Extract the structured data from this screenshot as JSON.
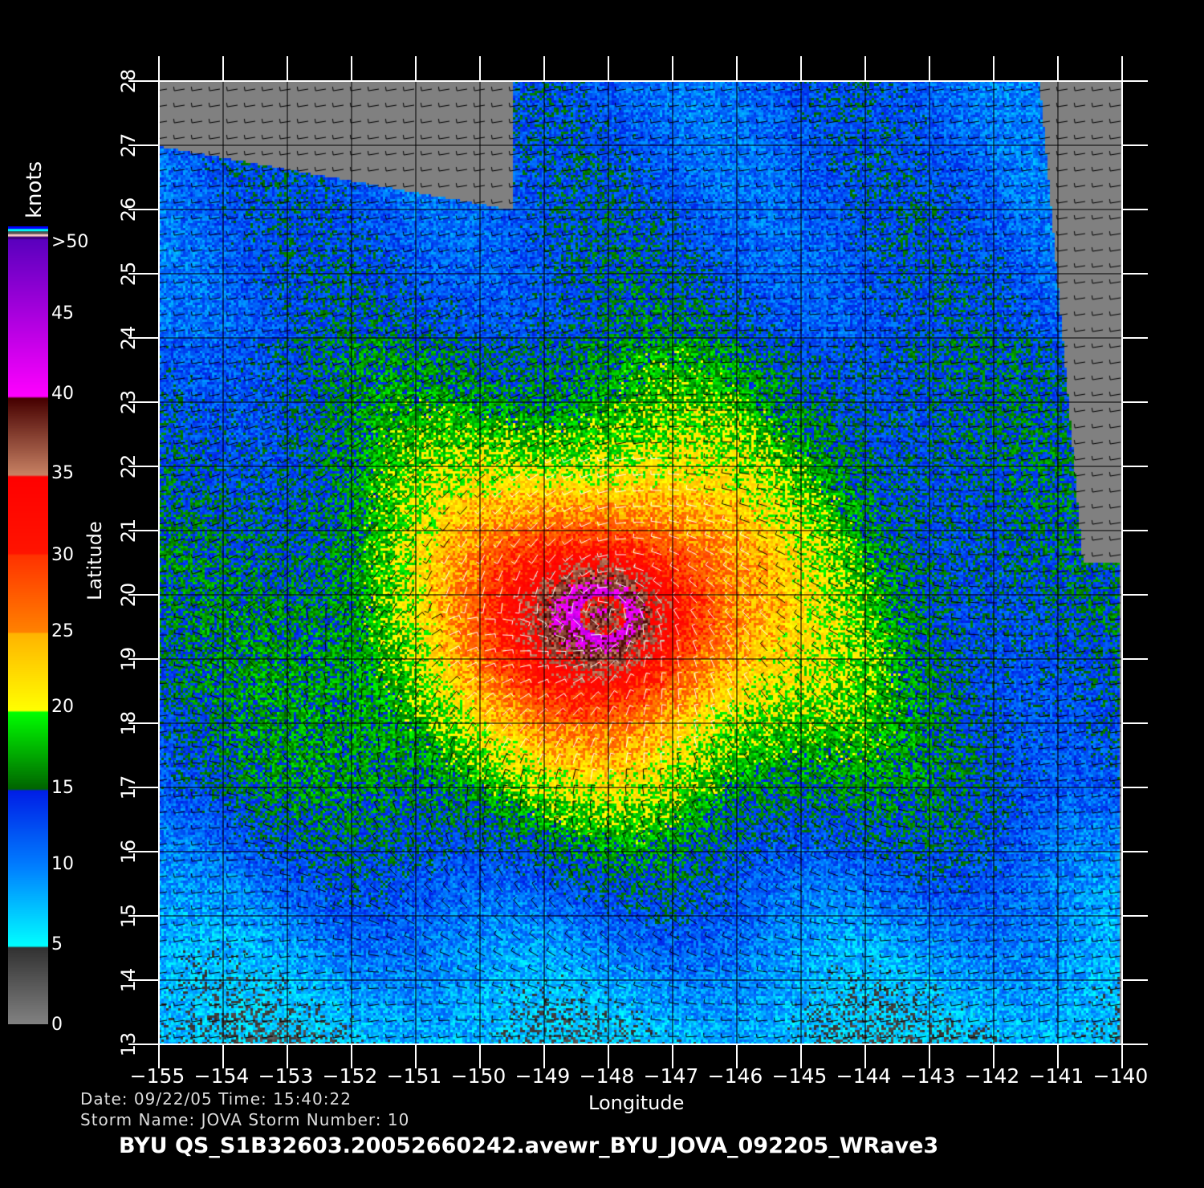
{
  "chart_data": {
    "type": "heatmap",
    "xlabel": "Longitude",
    "ylabel": "Latitude",
    "xlim": [
      -155,
      -140
    ],
    "ylim": [
      13,
      28
    ],
    "xticks": [
      "-155",
      "-154",
      "-153",
      "-152",
      "-151",
      "-150",
      "-149",
      "-148",
      "-147",
      "-146",
      "-145",
      "-144",
      "-143",
      "-142",
      "-141",
      "-140"
    ],
    "yticks": [
      "13",
      "14",
      "15",
      "16",
      "17",
      "18",
      "19",
      "20",
      "21",
      "22",
      "23",
      "24",
      "25",
      "26",
      "27",
      "28"
    ],
    "grid": true,
    "colorbar": {
      "unit": "knots",
      "ticks": [
        "0",
        "5",
        "10",
        "15",
        "20",
        "25",
        "30",
        "35",
        "40",
        "45",
        ">50"
      ],
      "colors": {
        "0-5": "#666666",
        "5-10": "#00e8ff",
        "10-15": "#0050ff",
        "15-20": "#00b000",
        "20-25": "#ffdd00",
        "25-30": "#ff7000",
        "30-35": "#ff1000",
        "35-40": "#a06048",
        "40-50": "#c000e0",
        ">50": "#6000c0"
      }
    },
    "overlay": "wind vectors"
  },
  "info": {
    "date_line": "Date: 09/22/05   Time: 15:40:22",
    "storm_line": "Storm  Name: JOVA   Storm  Number: 10",
    "title": "BYU  QS_S1B32603.20052660242.avewr_BYU_JOVA_092205_WRave3"
  }
}
